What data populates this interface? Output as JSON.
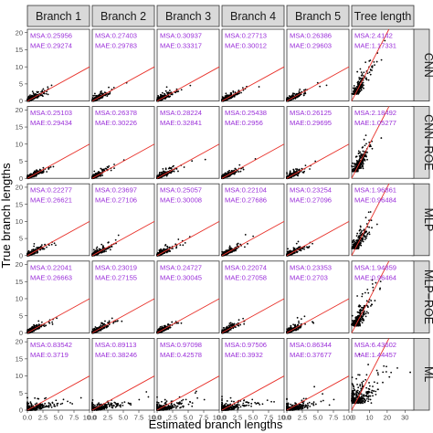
{
  "chart_data": {
    "type": "scatter",
    "title": "",
    "xlabel": "Estimated branch lengths",
    "ylabel": "True branch lengths",
    "columns": [
      "Branch 1",
      "Branch 2",
      "Branch 3",
      "Branch 4",
      "Branch 5",
      "Tree length"
    ],
    "rows": [
      "CNN",
      "CNN−ROE",
      "MLP",
      "MLP−ROE",
      "ML"
    ],
    "y_ticks": [
      0,
      5,
      10,
      15,
      20
    ],
    "ylim": [
      0,
      21
    ],
    "x_ticks_branch": [
      "0.0",
      "2.5",
      "5.0",
      "7.5",
      "10.0"
    ],
    "xlim_branch": [
      0,
      10
    ],
    "x_ticks_tree": [
      "0",
      "10",
      "20",
      "30"
    ],
    "xlim_tree": [
      0,
      35
    ],
    "reference_line": "y = x",
    "point_color": "#000000",
    "line_color": "#e8312a",
    "stat_color": "#9b30d9",
    "stat_labels": {
      "msa": "MSA",
      "mae": "MAE"
    },
    "stats": [
      [
        {
          "msa": "0.25956",
          "mae": "0.29274"
        },
        {
          "msa": "0.27403",
          "mae": "0.29783"
        },
        {
          "msa": "0.30937",
          "mae": "0.33317"
        },
        {
          "msa": "0.27713",
          "mae": "0.30012"
        },
        {
          "msa": "0.26386",
          "mae": "0.29603"
        },
        {
          "msa": "2.4142",
          "mae": "1.17331"
        }
      ],
      [
        {
          "msa": "0.25103",
          "mae": "0.29434"
        },
        {
          "msa": "0.26378",
          "mae": "0.30226"
        },
        {
          "msa": "0.28224",
          "mae": "0.32841"
        },
        {
          "msa": "0.25438",
          "mae": "0.2956"
        },
        {
          "msa": "0.26125",
          "mae": "0.29695"
        },
        {
          "msa": "2.18492",
          "mae": "1.05277"
        }
      ],
      [
        {
          "msa": "0.22277",
          "mae": "0.26621"
        },
        {
          "msa": "0.23697",
          "mae": "0.27106"
        },
        {
          "msa": "0.25057",
          "mae": "0.30008"
        },
        {
          "msa": "0.22104",
          "mae": "0.27686"
        },
        {
          "msa": "0.23254",
          "mae": "0.27096"
        },
        {
          "msa": "1.96861",
          "mae": "0.96484"
        }
      ],
      [
        {
          "msa": "0.22041",
          "mae": "0.26663"
        },
        {
          "msa": "0.23019",
          "mae": "0.27155"
        },
        {
          "msa": "0.24727",
          "mae": "0.30045"
        },
        {
          "msa": "0.22074",
          "mae": "0.27058"
        },
        {
          "msa": "0.23353",
          "mae": "0.2703"
        },
        {
          "msa": "1.94859",
          "mae": "0.96464"
        }
      ],
      [
        {
          "msa": "0.83542",
          "mae": "0.3719"
        },
        {
          "msa": "0.89113",
          "mae": "0.38246"
        },
        {
          "msa": "0.97098",
          "mae": "0.42578"
        },
        {
          "msa": "0.97506",
          "mae": "0.3932"
        },
        {
          "msa": "0.86344",
          "mae": "0.37677"
        },
        {
          "msa": "6.43602",
          "mae": "1.44457"
        }
      ]
    ]
  }
}
